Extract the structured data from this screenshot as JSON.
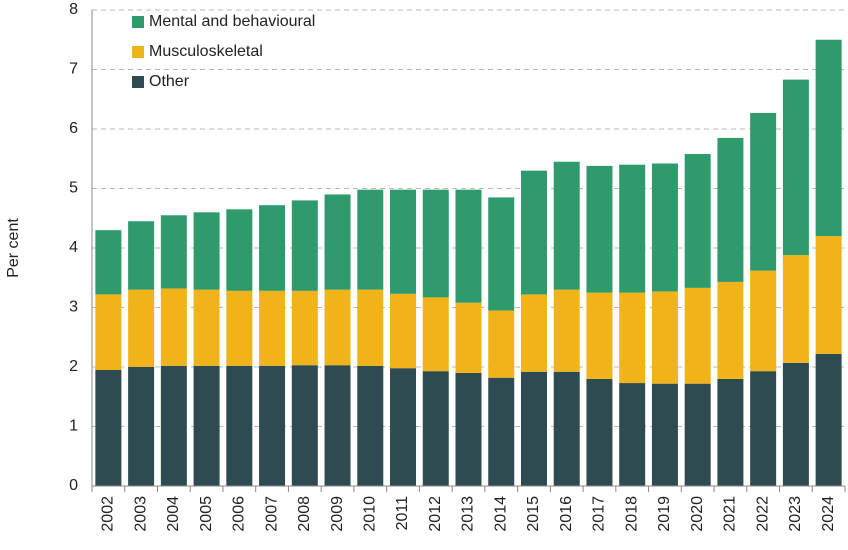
{
  "chart_data": {
    "type": "stacked-bar",
    "y_label": "Per cent",
    "categories": [
      "2002",
      "2003",
      "2004",
      "2005",
      "2006",
      "2007",
      "2008",
      "2009",
      "2010",
      "2011",
      "2012",
      "2013",
      "2014",
      "2015",
      "2016",
      "2017",
      "2018",
      "2019",
      "2020",
      "2021",
      "2022",
      "2023",
      "2024"
    ],
    "series": [
      {
        "name": "Mental and behavioural",
        "color": "#2f9b6c",
        "values": [
          1.08,
          1.15,
          1.23,
          1.3,
          1.37,
          1.44,
          1.52,
          1.6,
          1.68,
          1.75,
          1.81,
          1.9,
          1.9,
          2.08,
          2.15,
          2.13,
          2.15,
          2.15,
          2.25,
          2.42,
          2.65,
          2.95,
          3.3
        ]
      },
      {
        "name": "Musculoskeletal",
        "color": "#f0b31a",
        "values": [
          1.27,
          1.3,
          1.3,
          1.28,
          1.26,
          1.26,
          1.25,
          1.27,
          1.28,
          1.25,
          1.24,
          1.18,
          1.13,
          1.3,
          1.38,
          1.45,
          1.52,
          1.55,
          1.61,
          1.63,
          1.69,
          1.81,
          1.98
        ]
      },
      {
        "name": "Other",
        "color": "#2f4b52",
        "values": [
          1.95,
          2.0,
          2.02,
          2.02,
          2.02,
          2.02,
          2.03,
          2.03,
          2.02,
          1.98,
          1.93,
          1.9,
          1.82,
          1.92,
          1.92,
          1.8,
          1.73,
          1.72,
          1.72,
          1.8,
          1.93,
          2.07,
          2.22
        ]
      }
    ],
    "ylim": [
      0,
      8
    ],
    "yticks": [
      0,
      1,
      2,
      3,
      4,
      5,
      6,
      7,
      8
    ],
    "grid": true,
    "legend": "top-left"
  }
}
